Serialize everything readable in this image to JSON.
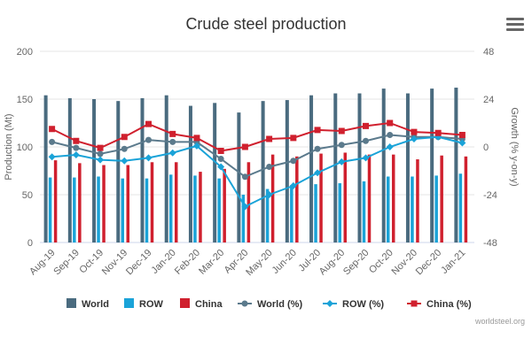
{
  "chart_data": {
    "type": "bar",
    "title": "Crude steel production",
    "categories": [
      "Aug-19",
      "Sep-19",
      "Oct-19",
      "Nov-19",
      "Dec-19",
      "Jan-20",
      "Feb-20",
      "Mar-20",
      "Apr-20",
      "May-20",
      "Jun-20",
      "Jul-20",
      "Aug-20",
      "Sep-20",
      "Oct-20",
      "Nov-20",
      "Dec-20",
      "Jan-21"
    ],
    "ylabel": "Production (Mt)",
    "ylim": [
      0,
      200
    ],
    "yticks": [
      "0",
      "50",
      "100",
      "150",
      "200"
    ],
    "y2label": "Growth (% y-on-y)",
    "y2lim": [
      -48,
      48
    ],
    "y2ticks": [
      "-48",
      "-24",
      "0",
      "24",
      "48"
    ],
    "legend_position": "bottom",
    "series": [
      {
        "name": "World",
        "type": "bar",
        "axis": "left",
        "color": "#4a6b7f",
        "values": [
          154,
          151,
          150,
          148,
          151,
          154,
          143,
          146,
          136,
          148,
          149,
          154,
          156,
          156,
          161,
          156,
          161,
          162
        ]
      },
      {
        "name": "ROW",
        "type": "bar",
        "axis": "left",
        "color": "#1aa3d8",
        "values": [
          68,
          68,
          69,
          67,
          67,
          71,
          70,
          67,
          50,
          56,
          60,
          61,
          62,
          64,
          69,
          69,
          70,
          72
        ]
      },
      {
        "name": "China",
        "type": "bar",
        "axis": "left",
        "color": "#d0202e",
        "values": [
          86,
          83,
          81,
          81,
          84,
          84,
          74,
          77,
          84,
          92,
          90,
          93,
          94,
          92,
          92,
          87,
          91,
          90
        ]
      },
      {
        "name": "World (%)",
        "type": "line",
        "axis": "right",
        "color": "#5b7a8c",
        "values": [
          2.5,
          -0.5,
          -3.5,
          -1,
          3.5,
          2.5,
          2.5,
          -6,
          -15,
          -10,
          -7,
          -1,
          1,
          3,
          6,
          5,
          5,
          4
        ]
      },
      {
        "name": "ROW (%)",
        "type": "line",
        "axis": "right",
        "color": "#1aa3d8",
        "values": [
          -5,
          -4,
          -6.5,
          -7,
          -5.5,
          -3,
          0.5,
          -10,
          -30,
          -24,
          -19.5,
          -13,
          -7.5,
          -5.5,
          0,
          4,
          5,
          2
        ]
      },
      {
        "name": "China (%)",
        "type": "line",
        "axis": "right",
        "color": "#d0202e",
        "values": [
          9,
          3,
          -0.5,
          5,
          11.5,
          6.5,
          4.5,
          -2,
          0,
          4,
          4.5,
          8.5,
          8,
          10.5,
          12,
          7.5,
          7,
          6
        ]
      }
    ]
  },
  "credit": "worldsteel.org",
  "menu": {
    "icon": "menu-icon"
  }
}
